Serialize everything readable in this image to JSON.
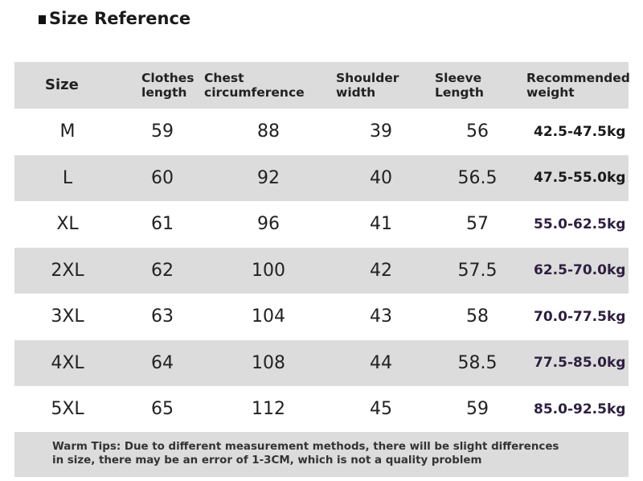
{
  "title": "Size Reference",
  "table": {
    "headers": [
      "Size",
      "Clothes\nlength",
      "Chest\ncircumference",
      "Shoulder\nwidth",
      "Sleeve\nLength",
      "Recommended\nweight"
    ],
    "rows": [
      [
        "M",
        "59",
        "88",
        "39",
        "56",
        "42.5-47.5kg"
      ],
      [
        "L",
        "60",
        "92",
        "40",
        "56.5",
        "47.5-55.0kg"
      ],
      [
        "XL",
        "61",
        "96",
        "41",
        "57",
        "55.0-62.5kg"
      ],
      [
        "2XL",
        "62",
        "100",
        "42",
        "57.5",
        "62.5-70.0kg"
      ],
      [
        "3XL",
        "63",
        "104",
        "43",
        "58",
        "70.0-77.5kg"
      ],
      [
        "4XL",
        "64",
        "108",
        "44",
        "58.5",
        "77.5-85.0kg"
      ],
      [
        "5XL",
        "65",
        "112",
        "45",
        "59",
        "85.0-92.5kg"
      ]
    ]
  },
  "tips": {
    "line1": "Warm Tips: Due to different measurement methods, there will be slight differences",
    "line2": "in size, there may be an error of 1-3CM, which is not a quality problem"
  },
  "colors": {
    "shade": "#dcdcdc",
    "text": "#222222",
    "weight_purple": "#2e1f3f"
  }
}
